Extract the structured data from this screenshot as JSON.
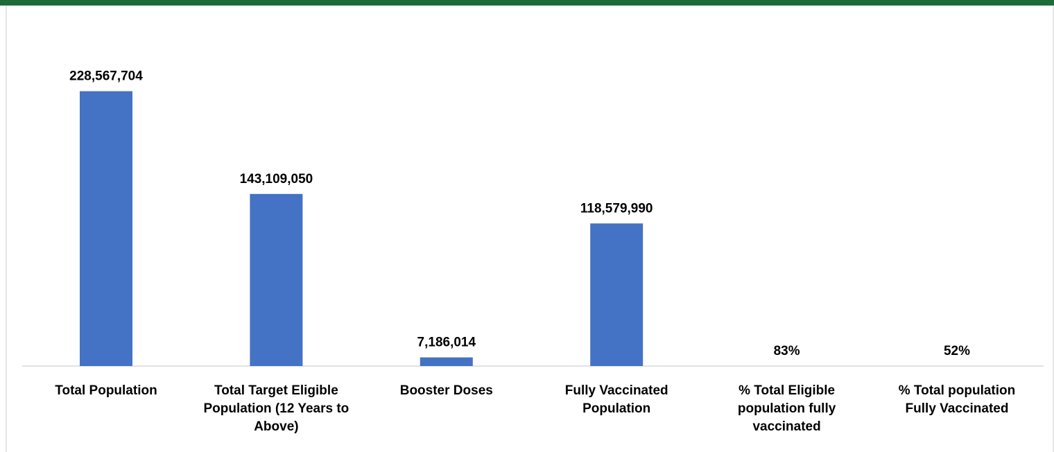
{
  "chart_data": {
    "type": "bar",
    "categories": [
      "Total Population",
      "Total Target Eligible Population (12 Years to Above)",
      "Booster Doses",
      "Fully Vaccinated Population",
      "% Total Eligible population fully vaccinated",
      "% Total population Fully Vaccinated"
    ],
    "values": [
      228567704,
      143109050,
      7186014,
      118579990,
      0.83,
      0.52
    ],
    "data_labels": [
      "228,567,704",
      "143,109,050",
      "7,186,014",
      "118,579,990",
      "83%",
      "52%"
    ],
    "ylim": [
      0,
      260000000
    ],
    "title": "",
    "xlabel": "",
    "ylabel": "",
    "grid": false,
    "bar_color": "#4472c4"
  },
  "colors": {
    "header_bar": "#1e6b3a",
    "axis": "#d9d9d9"
  }
}
